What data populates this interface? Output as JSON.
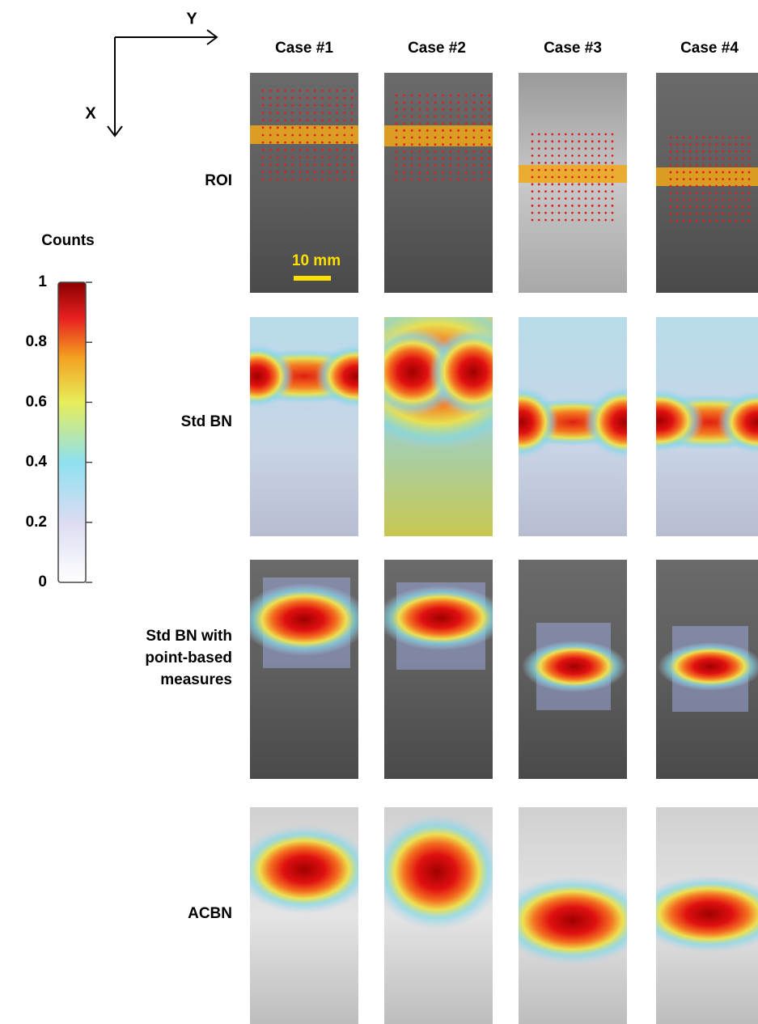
{
  "axes": {
    "x_label": "X",
    "y_label": "Y"
  },
  "columns": [
    "Case #1",
    "Case #2",
    "Case #3",
    "Case #4"
  ],
  "rows": [
    {
      "lines": [
        "ROI"
      ]
    },
    {
      "lines": [
        "Std BN"
      ]
    },
    {
      "lines": [
        "Std BN with",
        "point-based",
        "measures"
      ]
    },
    {
      "lines": [
        "ACBN"
      ]
    }
  ],
  "scale_bar": "10 mm",
  "colorbar": {
    "title": "Counts",
    "lim": [
      0,
      1
    ],
    "ticks": [
      0,
      0.2,
      0.4,
      0.6,
      0.8,
      1
    ]
  }
}
